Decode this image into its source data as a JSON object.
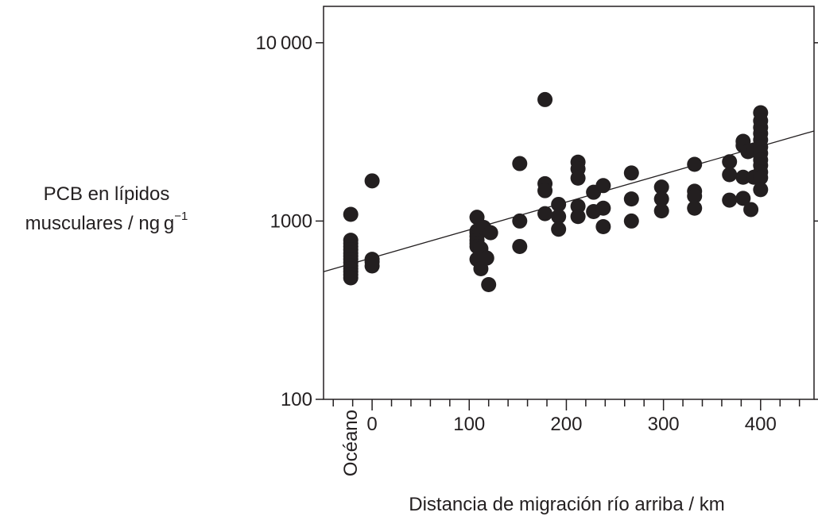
{
  "chart_data": {
    "type": "scatter",
    "title": "",
    "xlabel": "Distancia de migración río arriba / km",
    "ylabel_line1": "PCB en lípidos",
    "ylabel_line2_main": "musculares / ng g",
    "ylabel_line2_sup": "−1",
    "y_scale": "log",
    "xlim": [
      -50,
      455
    ],
    "ylim": [
      100,
      16000
    ],
    "x_ticks": [
      {
        "value": 0,
        "label": "0"
      },
      {
        "value": 100,
        "label": "100"
      },
      {
        "value": 200,
        "label": "200"
      },
      {
        "value": 300,
        "label": "300"
      },
      {
        "value": 400,
        "label": "400"
      }
    ],
    "y_ticks": [
      {
        "value": 100,
        "label": "100"
      },
      {
        "value": 1000,
        "label": "1000"
      },
      {
        "value": 10000,
        "label": "10 000"
      }
    ],
    "ocean_label": "Océano",
    "ocean_x": -22,
    "grid": false,
    "trend_line": {
      "x": [
        -50,
        455
      ],
      "y": [
        520,
        3200
      ]
    },
    "points": [
      [
        -22,
        1090
      ],
      [
        -22,
        780
      ],
      [
        -22,
        750
      ],
      [
        -22,
        720
      ],
      [
        -22,
        690
      ],
      [
        -22,
        660
      ],
      [
        -22,
        635
      ],
      [
        -22,
        610
      ],
      [
        -22,
        585
      ],
      [
        -22,
        560
      ],
      [
        -22,
        540
      ],
      [
        -22,
        520
      ],
      [
        -22,
        500
      ],
      [
        -22,
        480
      ],
      [
        0,
        1680
      ],
      [
        0,
        610
      ],
      [
        0,
        590
      ],
      [
        0,
        560
      ],
      [
        108,
        1050
      ],
      [
        108,
        880
      ],
      [
        108,
        860
      ],
      [
        108,
        820
      ],
      [
        108,
        780
      ],
      [
        108,
        750
      ],
      [
        108,
        720
      ],
      [
        108,
        610
      ],
      [
        112,
        700
      ],
      [
        112,
        540
      ],
      [
        115,
        920
      ],
      [
        118,
        620
      ],
      [
        120,
        440
      ],
      [
        122,
        860
      ],
      [
        152,
        2100
      ],
      [
        152,
        1000
      ],
      [
        152,
        720
      ],
      [
        178,
        4800
      ],
      [
        178,
        1620
      ],
      [
        178,
        1480
      ],
      [
        178,
        1100
      ],
      [
        192,
        1240
      ],
      [
        192,
        1060
      ],
      [
        192,
        900
      ],
      [
        212,
        2140
      ],
      [
        212,
        1960
      ],
      [
        212,
        1740
      ],
      [
        212,
        1210
      ],
      [
        212,
        1060
      ],
      [
        228,
        1450
      ],
      [
        228,
        1130
      ],
      [
        238,
        1580
      ],
      [
        238,
        1180
      ],
      [
        238,
        930
      ],
      [
        267,
        1860
      ],
      [
        267,
        1330
      ],
      [
        267,
        1000
      ],
      [
        298,
        1550
      ],
      [
        298,
        1330
      ],
      [
        298,
        1140
      ],
      [
        332,
        2080
      ],
      [
        332,
        1470
      ],
      [
        332,
        1380
      ],
      [
        332,
        1180
      ],
      [
        368,
        2150
      ],
      [
        368,
        1820
      ],
      [
        368,
        1310
      ],
      [
        382,
        2800
      ],
      [
        382,
        2650
      ],
      [
        382,
        1760
      ],
      [
        382,
        1340
      ],
      [
        387,
        2450
      ],
      [
        390,
        1160
      ],
      [
        393,
        1760
      ],
      [
        393,
        2500
      ],
      [
        400,
        4050
      ],
      [
        400,
        3650
      ],
      [
        400,
        3350
      ],
      [
        400,
        3100
      ],
      [
        400,
        2850
      ],
      [
        400,
        2600
      ],
      [
        400,
        2400
      ],
      [
        400,
        2200
      ],
      [
        400,
        2050
      ],
      [
        400,
        1880
      ],
      [
        400,
        1750
      ],
      [
        400,
        1500
      ]
    ]
  }
}
